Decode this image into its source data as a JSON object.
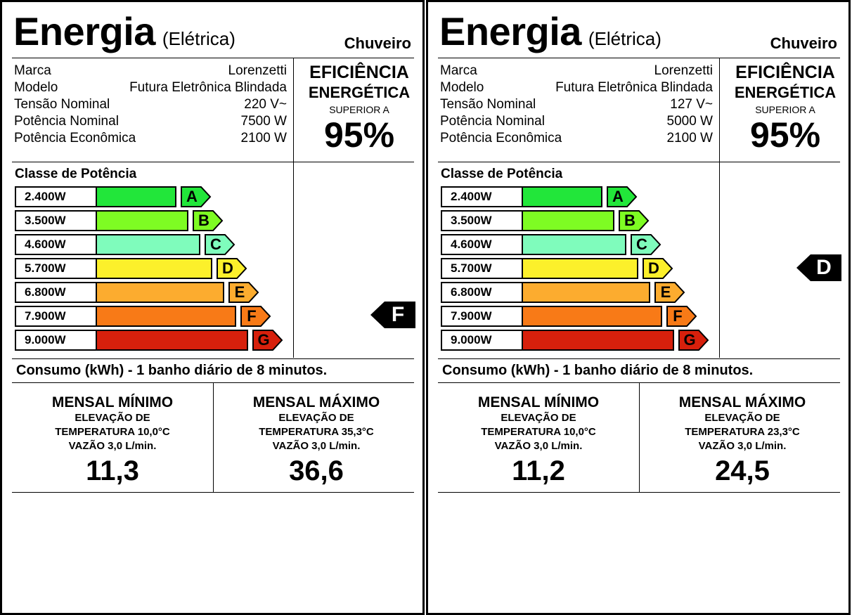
{
  "labels": [
    {
      "title": "Energia",
      "subtitle": "(Elétrica)",
      "product": "Chuveiro",
      "specs": [
        {
          "label": "Marca",
          "value": "Lorenzetti"
        },
        {
          "label": "Modelo",
          "value": "Futura Eletrônica Blindada"
        },
        {
          "label": "Tensão Nominal",
          "value": "220 V~"
        },
        {
          "label": "Potência Nominal",
          "value": "7500 W"
        },
        {
          "label": "Potência Econômica",
          "value": "2100 W"
        }
      ],
      "efficiency": {
        "line1": "EFICIÊNCIA",
        "line2": "ENERGÉTICA",
        "line3": "SUPERIOR A",
        "value": "95%"
      },
      "class_title": "Classe de Potência",
      "classes": [
        {
          "power": "2.400W",
          "letter": "A",
          "color": "#22e63a"
        },
        {
          "power": "3.500W",
          "letter": "B",
          "color": "#7efc23"
        },
        {
          "power": "4.600W",
          "letter": "C",
          "color": "#7ffcbc"
        },
        {
          "power": "5.700W",
          "letter": "D",
          "color": "#fcf02b"
        },
        {
          "power": "6.800W",
          "letter": "E",
          "color": "#fcac2f"
        },
        {
          "power": "7.900W",
          "letter": "F",
          "color": "#f87a17"
        },
        {
          "power": "9.000W",
          "letter": "G",
          "color": "#d7200c"
        }
      ],
      "selected_class": "F",
      "consumo": "Consumo (kWh) - 1 banho diário de 8 minutos.",
      "min": {
        "head": "MENSAL MÍNIMO",
        "l1": "ELEVAÇÃO DE",
        "l2": "TEMPERATURA 10,0°C",
        "l3": "VAZÃO 3,0 L/min.",
        "value": "11,3"
      },
      "max": {
        "head": "MENSAL MÁXIMO",
        "l1": "ELEVAÇÃO DE",
        "l2": "TEMPERATURA 35,3°C",
        "l3": "VAZÃO 3,0 L/min.",
        "value": "36,6"
      }
    },
    {
      "title": "Energia",
      "subtitle": "(Elétrica)",
      "product": "Chuveiro",
      "specs": [
        {
          "label": "Marca",
          "value": "Lorenzetti"
        },
        {
          "label": "Modelo",
          "value": "Futura Eletrônica Blindada"
        },
        {
          "label": "Tensão Nominal",
          "value": "127 V~"
        },
        {
          "label": "Potência Nominal",
          "value": "5000 W"
        },
        {
          "label": "Potência Econômica",
          "value": "2100 W"
        }
      ],
      "efficiency": {
        "line1": "EFICIÊNCIA",
        "line2": "ENERGÉTICA",
        "line3": "SUPERIOR A",
        "value": "95%"
      },
      "class_title": "Classe de Potência",
      "classes": [
        {
          "power": "2.400W",
          "letter": "A",
          "color": "#22e63a"
        },
        {
          "power": "3.500W",
          "letter": "B",
          "color": "#7efc23"
        },
        {
          "power": "4.600W",
          "letter": "C",
          "color": "#7ffcbc"
        },
        {
          "power": "5.700W",
          "letter": "D",
          "color": "#fcf02b"
        },
        {
          "power": "6.800W",
          "letter": "E",
          "color": "#fcac2f"
        },
        {
          "power": "7.900W",
          "letter": "F",
          "color": "#f87a17"
        },
        {
          "power": "9.000W",
          "letter": "G",
          "color": "#d7200c"
        }
      ],
      "selected_class": "D",
      "consumo": "Consumo (kWh) - 1 banho diário de 8 minutos.",
      "min": {
        "head": "MENSAL MÍNIMO",
        "l1": "ELEVAÇÃO DE",
        "l2": "TEMPERATURA 10,0°C",
        "l3": "VAZÃO 3,0 L/min.",
        "value": "11,2"
      },
      "max": {
        "head": "MENSAL MÁXIMO",
        "l1": "ELEVAÇÃO DE",
        "l2": "TEMPERATURA 23,3°C",
        "l3": "VAZÃO 3,0 L/min.",
        "value": "24,5"
      }
    }
  ]
}
